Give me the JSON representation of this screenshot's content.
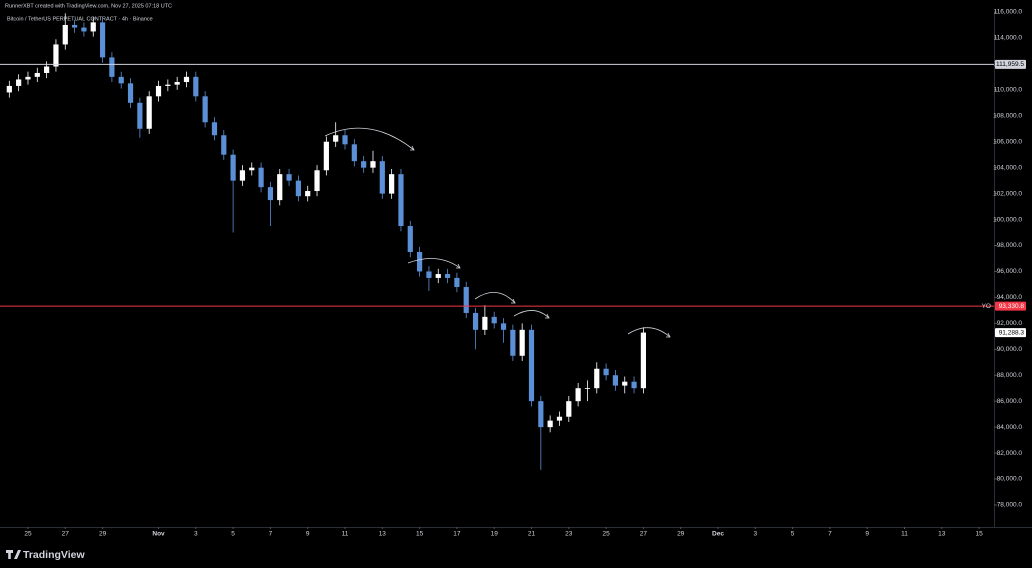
{
  "chart_data": {
    "type": "candlestick",
    "header": "RunnerXBT created with TradingView.com, Nov 27, 2025 07:18 UTC",
    "title": "Bitcoin / TetherUS PERPETUAL CONTRACT · 4h · Binance",
    "brand": "TradingView",
    "up_color": "#ffffff",
    "down_color": "#5b8fd6",
    "x": [
      -1.0,
      -0.5,
      0,
      0.5,
      1,
      1.5,
      2,
      2.5,
      3,
      3.5,
      4,
      4.5,
      5,
      5.5,
      6,
      6.5,
      7,
      7.5,
      8,
      8.5,
      9,
      9.5,
      10,
      10.5,
      11,
      11.5,
      12,
      12.5,
      13,
      13.5,
      14,
      14.5,
      15,
      15.5,
      16,
      16.5,
      17,
      17.5,
      18,
      18.5,
      19,
      19.5,
      20,
      20.5,
      21,
      21.5,
      22,
      22.5,
      23,
      23.5,
      24,
      24.5,
      25,
      25.5,
      26,
      26.5,
      27,
      27.5,
      28,
      28.5,
      29,
      29.5,
      30,
      30.5,
      31,
      31.5,
      32,
      32.5,
      33
    ],
    "open": [
      109800,
      110300,
      110800,
      111000,
      111300,
      111800,
      113500,
      115000,
      114800,
      114500,
      115200,
      112500,
      111000,
      110500,
      109000,
      107000,
      109500,
      110300,
      110400,
      110600,
      111000,
      109500,
      107500,
      106500,
      105000,
      103000,
      103800,
      104000,
      102500,
      101500,
      103500,
      103000,
      101800,
      102200,
      103800,
      106000,
      106500,
      105800,
      104500,
      104000,
      104500,
      102000,
      103500,
      99500,
      97500,
      96000,
      95500,
      95800,
      95500,
      94800,
      92800,
      91500,
      92500,
      92000,
      91500,
      89500,
      91500,
      86000,
      84000,
      84500,
      84800,
      86000,
      87000,
      87000,
      88500,
      88000,
      87200,
      87500,
      87000
    ],
    "high": [
      110700,
      111200,
      111400,
      111700,
      112200,
      113900,
      115900,
      115400,
      115200,
      115600,
      115600,
      112900,
      111400,
      110900,
      109400,
      109900,
      110700,
      110800,
      111000,
      111400,
      111400,
      109900,
      107900,
      106900,
      105400,
      104200,
      104400,
      104400,
      102900,
      103900,
      103900,
      103400,
      102600,
      104200,
      106400,
      107500,
      106900,
      106200,
      104900,
      105300,
      104900,
      103900,
      103900,
      99900,
      97900,
      96400,
      96200,
      96200,
      95900,
      95200,
      93200,
      93400,
      92900,
      92400,
      91900,
      92000,
      91900,
      86400,
      84900,
      85200,
      86400,
      87400,
      87600,
      89000,
      88900,
      88400,
      87900,
      87900,
      91700
    ],
    "low": [
      109400,
      109900,
      110400,
      110600,
      110900,
      111400,
      113100,
      114400,
      114100,
      114100,
      112100,
      110600,
      110100,
      108600,
      106300,
      106600,
      109100,
      109900,
      110000,
      110200,
      109100,
      107100,
      106100,
      104600,
      99000,
      102600,
      103400,
      102100,
      99500,
      101100,
      102600,
      101400,
      101400,
      101800,
      103400,
      105600,
      105400,
      104100,
      103600,
      103600,
      101600,
      101600,
      99100,
      97100,
      95600,
      94500,
      95100,
      95100,
      94400,
      92400,
      90000,
      91100,
      91600,
      90500,
      89100,
      89100,
      85600,
      80700,
      83600,
      84100,
      84400,
      85600,
      86000,
      86600,
      87600,
      86800,
      86600,
      86600,
      86600
    ],
    "close": [
      110300,
      110800,
      111000,
      111300,
      111800,
      113500,
      115000,
      114800,
      114500,
      115200,
      112500,
      111000,
      110500,
      109000,
      107000,
      109500,
      110300,
      110400,
      110600,
      111000,
      109500,
      107500,
      106500,
      105000,
      103000,
      103800,
      104000,
      102500,
      101500,
      103500,
      103000,
      101800,
      102200,
      103800,
      106000,
      106500,
      105800,
      104500,
      104000,
      104500,
      102000,
      103500,
      99500,
      97500,
      96000,
      95500,
      95800,
      95500,
      94800,
      92800,
      91500,
      92500,
      92000,
      91500,
      89500,
      91500,
      86000,
      84000,
      84500,
      84800,
      86000,
      87000,
      87000,
      88500,
      88000,
      87200,
      87500,
      87000,
      91288.3
    ],
    "last_label": "91,288.3",
    "xlim": [
      -1.5,
      51.8
    ],
    "xticks": [
      {
        "value": 0,
        "label": "25"
      },
      {
        "value": 2,
        "label": "27"
      },
      {
        "value": 4,
        "label": "29"
      },
      {
        "value": 7,
        "label": "Nov"
      },
      {
        "value": 9,
        "label": "3"
      },
      {
        "value": 11,
        "label": "5"
      },
      {
        "value": 13,
        "label": "7"
      },
      {
        "value": 15,
        "label": "9"
      },
      {
        "value": 17,
        "label": "11"
      },
      {
        "value": 19,
        "label": "13"
      },
      {
        "value": 21,
        "label": "15"
      },
      {
        "value": 23,
        "label": "17"
      },
      {
        "value": 25,
        "label": "19"
      },
      {
        "value": 27,
        "label": "21"
      },
      {
        "value": 29,
        "label": "23"
      },
      {
        "value": 31,
        "label": "25"
      },
      {
        "value": 33,
        "label": "27"
      },
      {
        "value": 35,
        "label": "29"
      },
      {
        "value": 37,
        "label": "Dec"
      },
      {
        "value": 39,
        "label": "3"
      },
      {
        "value": 41,
        "label": "5"
      },
      {
        "value": 43,
        "label": "7"
      },
      {
        "value": 45,
        "label": "9"
      },
      {
        "value": 47,
        "label": "11"
      },
      {
        "value": 49,
        "label": "13"
      },
      {
        "value": 51,
        "label": "15"
      }
    ],
    "ylim": [
      76300,
      116000
    ],
    "yticks": [
      {
        "value": 78000,
        "label": "78,000.0"
      },
      {
        "value": 80000,
        "label": "80,000.0"
      },
      {
        "value": 82000,
        "label": "82,000.0"
      },
      {
        "value": 84000,
        "label": "84,000.0"
      },
      {
        "value": 86000,
        "label": "86,000.0"
      },
      {
        "value": 88000,
        "label": "88,000.0"
      },
      {
        "value": 90000,
        "label": "90,000.0"
      },
      {
        "value": 92000,
        "label": "92,000.0"
      },
      {
        "value": 94000,
        "label": "94,000.0"
      },
      {
        "value": 96000,
        "label": "96,000.0"
      },
      {
        "value": 98000,
        "label": "98,000.0"
      },
      {
        "value": 100000,
        "label": "100,000.0"
      },
      {
        "value": 102000,
        "label": "102,000.0"
      },
      {
        "value": 104000,
        "label": "104,000.0"
      },
      {
        "value": 106000,
        "label": "106,000.0"
      },
      {
        "value": 108000,
        "label": "108,000.0"
      },
      {
        "value": 110000,
        "label": "110,000.0"
      },
      {
        "value": 112000,
        "label": "112,000.0"
      },
      {
        "value": 114000,
        "label": "114,000.0"
      },
      {
        "value": 116000,
        "label": "116,000.0"
      }
    ],
    "levels": [
      {
        "value": 111959.5,
        "label": "111,959.5",
        "color": "#d1d4dc"
      },
      {
        "name": "YO",
        "value": 93330.8,
        "label": "93,330.8",
        "color": "#f23645"
      }
    ]
  }
}
